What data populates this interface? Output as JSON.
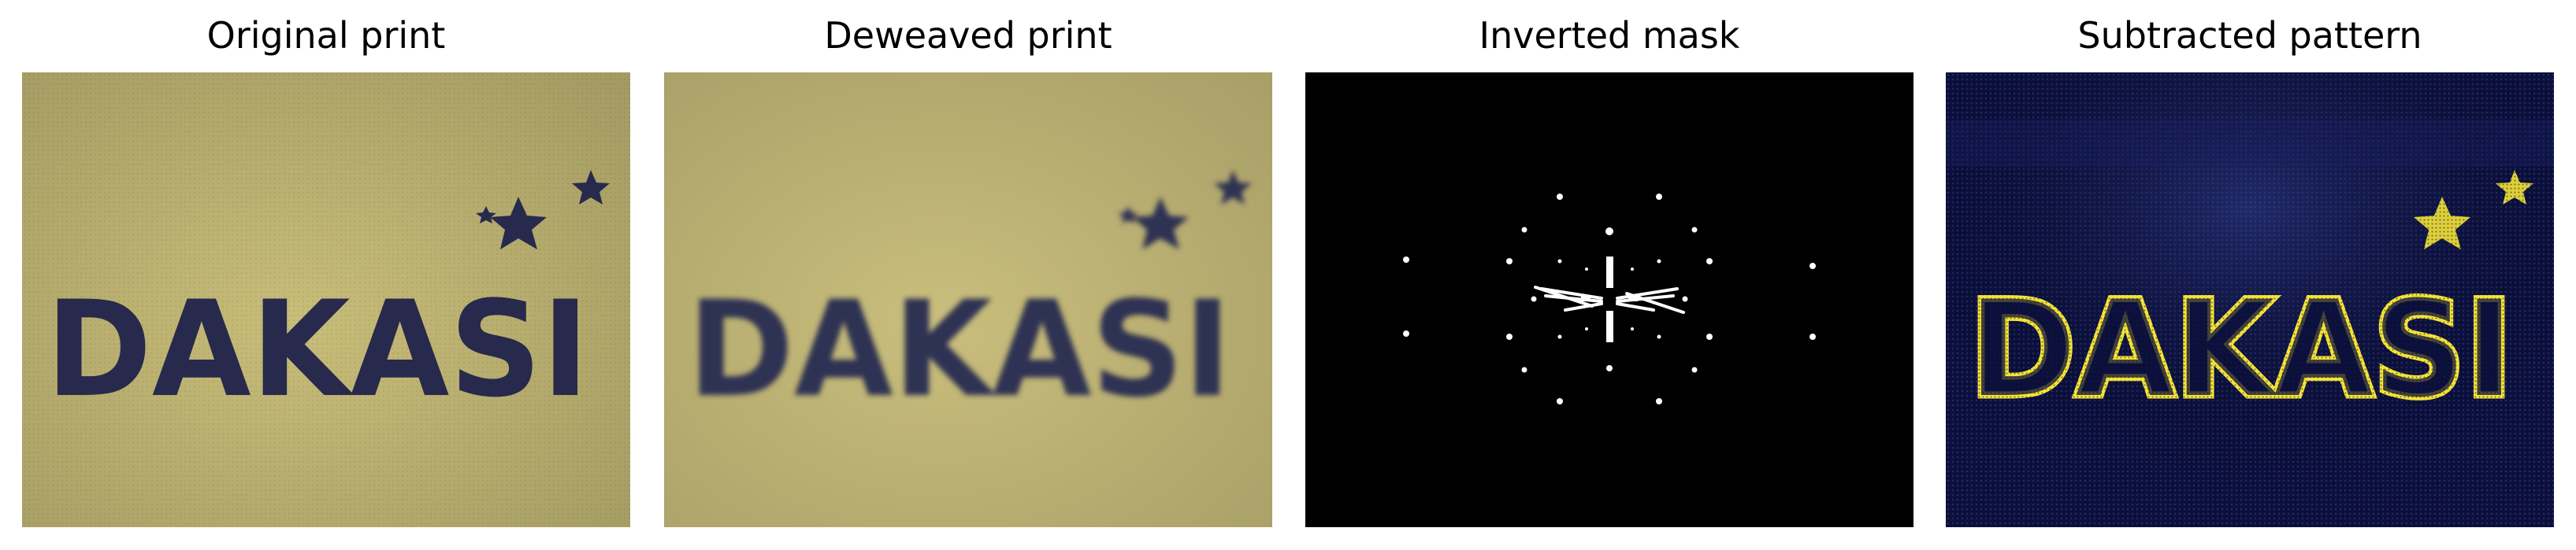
{
  "figure": {
    "panels": [
      {
        "title": "Original print"
      },
      {
        "title": "Deweaved print"
      },
      {
        "title": "Inverted mask"
      },
      {
        "title": "Subtracted pattern"
      }
    ]
  },
  "logo_text": "DAKASI",
  "colors": {
    "fabric": "#c8bd79",
    "fabric_dark": "#a99e5f",
    "ink": "#272a4c",
    "mask_bg": "#000000",
    "mask_fg": "#ffffff",
    "pattern_bg": "#0b0f3a",
    "pattern_highlight": "#f4e43a"
  }
}
